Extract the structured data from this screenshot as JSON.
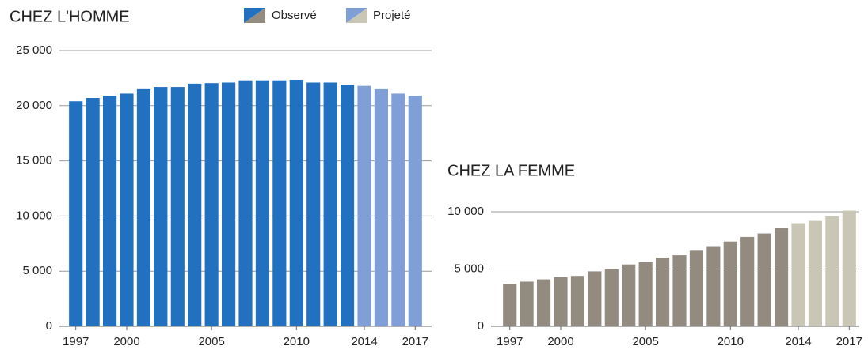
{
  "chart_data": [
    {
      "type": "bar",
      "title": "CHEZ L'HOMME",
      "categories": [
        "1997",
        null,
        null,
        "2000",
        null,
        null,
        null,
        null,
        "2005",
        null,
        null,
        null,
        null,
        "2010",
        null,
        null,
        null,
        "2014",
        null,
        null,
        "2017"
      ],
      "series": [
        {
          "name": "Observé",
          "color": "#2271c0",
          "values": [
            20400,
            20700,
            20900,
            21100,
            21500,
            21700,
            21700,
            22000,
            22050,
            22100,
            22300,
            22300,
            22300,
            22350,
            22100,
            22100,
            21900,
            null,
            null,
            null,
            null
          ]
        },
        {
          "name": "Projeté",
          "color": "#7f9fd6",
          "values": [
            null,
            null,
            null,
            null,
            null,
            null,
            null,
            null,
            null,
            null,
            null,
            null,
            null,
            null,
            null,
            null,
            null,
            21800,
            21500,
            21100,
            20900
          ]
        }
      ],
      "ylim": [
        0,
        25000
      ],
      "yticks": [
        0,
        {
          "value": 5000,
          "label": "5 000"
        },
        {
          "value": 10000,
          "label": "10 000"
        },
        {
          "value": 15000,
          "label": "15 000"
        },
        {
          "value": 20000,
          "label": "20 000"
        },
        {
          "value": 25000,
          "label": "25 000"
        }
      ],
      "grid": true
    },
    {
      "type": "bar",
      "title": "CHEZ LA FEMME",
      "categories": [
        "1997",
        null,
        null,
        "2000",
        null,
        null,
        null,
        null,
        "2005",
        null,
        null,
        null,
        null,
        "2010",
        null,
        null,
        null,
        "2014",
        null,
        null,
        "2017"
      ],
      "series": [
        {
          "name": "Observé",
          "color": "#938b80",
          "values": [
            3700,
            3900,
            4100,
            4300,
            4400,
            4800,
            5000,
            5400,
            5600,
            6000,
            6200,
            6600,
            7000,
            7400,
            7800,
            8100,
            8600,
            null,
            null,
            null,
            null
          ]
        },
        {
          "name": "Projeté",
          "color": "#c9c6b5",
          "values": [
            null,
            null,
            null,
            null,
            null,
            null,
            null,
            null,
            null,
            null,
            null,
            null,
            null,
            null,
            null,
            null,
            null,
            9000,
            9200,
            9600,
            10100
          ]
        }
      ],
      "ylim": [
        0,
        10000
      ],
      "yticks": [
        0,
        {
          "value": 5000,
          "label": "5 000"
        },
        {
          "value": 10000,
          "label": "10 000"
        }
      ],
      "grid": true
    }
  ]
}
